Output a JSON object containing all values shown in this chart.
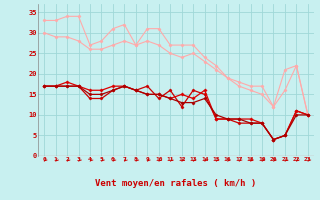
{
  "background_color": "#c8f0f0",
  "grid_color": "#a0d8d8",
  "xlabel": "Vent moyen/en rafales ( km/h )",
  "xlabel_color": "#cc0000",
  "xlabel_fontsize": 6.5,
  "tick_color": "#cc0000",
  "tick_fontsize": 5,
  "ylim": [
    0,
    37
  ],
  "xlim": [
    -0.5,
    23.5
  ],
  "yticks": [
    0,
    5,
    10,
    15,
    20,
    25,
    30,
    35
  ],
  "xticks": [
    0,
    1,
    2,
    3,
    4,
    5,
    6,
    7,
    8,
    9,
    10,
    11,
    12,
    13,
    14,
    15,
    16,
    17,
    18,
    19,
    20,
    21,
    22,
    23
  ],
  "series": [
    {
      "x": [
        0,
        1,
        2,
        3,
        4,
        5,
        6,
        7,
        8,
        9,
        10,
        11,
        12,
        13,
        14,
        15,
        16,
        17,
        18,
        19,
        20,
        21,
        22,
        23
      ],
      "y": [
        33,
        33,
        34,
        34,
        27,
        28,
        31,
        32,
        27,
        31,
        31,
        27,
        27,
        27,
        24,
        22,
        19,
        18,
        17,
        17,
        12,
        21,
        22,
        10
      ],
      "color": "#ffaaaa",
      "marker": "D",
      "markersize": 1.5,
      "linewidth": 0.8
    },
    {
      "x": [
        0,
        1,
        2,
        3,
        4,
        5,
        6,
        7,
        8,
        9,
        10,
        11,
        12,
        13,
        14,
        15,
        16,
        17,
        18,
        19,
        20,
        21,
        22,
        23
      ],
      "y": [
        30,
        29,
        29,
        28,
        26,
        26,
        27,
        28,
        27,
        28,
        27,
        25,
        24,
        25,
        23,
        21,
        19,
        17,
        16,
        15,
        12,
        16,
        22,
        10
      ],
      "color": "#ffaaaa",
      "marker": "D",
      "markersize": 1.5,
      "linewidth": 0.8
    },
    {
      "x": [
        0,
        1,
        2,
        3,
        4,
        5,
        6,
        7,
        8,
        9,
        10,
        11,
        12,
        13,
        14,
        15,
        16,
        17,
        18,
        19,
        20,
        21,
        22,
        23
      ],
      "y": [
        17,
        17,
        17,
        17,
        14,
        14,
        16,
        17,
        16,
        17,
        14,
        16,
        12,
        16,
        15,
        9,
        9,
        8,
        8,
        8,
        4,
        5,
        11,
        10
      ],
      "color": "#cc0000",
      "marker": "D",
      "markersize": 1.5,
      "linewidth": 0.9
    },
    {
      "x": [
        0,
        1,
        2,
        3,
        4,
        5,
        6,
        7,
        8,
        9,
        10,
        11,
        12,
        13,
        14,
        15,
        16,
        17,
        18,
        19,
        20,
        21,
        22,
        23
      ],
      "y": [
        17,
        17,
        18,
        17,
        16,
        16,
        17,
        17,
        16,
        15,
        15,
        14,
        15,
        14,
        16,
        9,
        9,
        9,
        9,
        8,
        4,
        5,
        11,
        10
      ],
      "color": "#dd0000",
      "marker": "P",
      "markersize": 2,
      "linewidth": 0.9
    },
    {
      "x": [
        0,
        1,
        2,
        3,
        4,
        5,
        6,
        7,
        8,
        9,
        10,
        11,
        12,
        13,
        14,
        15,
        16,
        17,
        18,
        19,
        20,
        21,
        22,
        23
      ],
      "y": [
        17,
        17,
        17,
        17,
        15,
        15,
        16,
        17,
        16,
        15,
        15,
        14,
        13,
        13,
        14,
        10,
        9,
        9,
        8,
        8,
        4,
        5,
        10,
        10
      ],
      "color": "#aa0000",
      "marker": "D",
      "markersize": 1.5,
      "linewidth": 0.9
    }
  ],
  "wind_arrows_x": [
    0,
    1,
    2,
    3,
    4,
    5,
    6,
    7,
    8,
    9,
    10,
    11,
    12,
    13,
    14,
    15,
    16,
    17,
    18,
    19,
    20,
    21,
    22,
    23
  ],
  "wind_arrow_color": "#cc0000",
  "bottom_line_color": "#cc0000"
}
